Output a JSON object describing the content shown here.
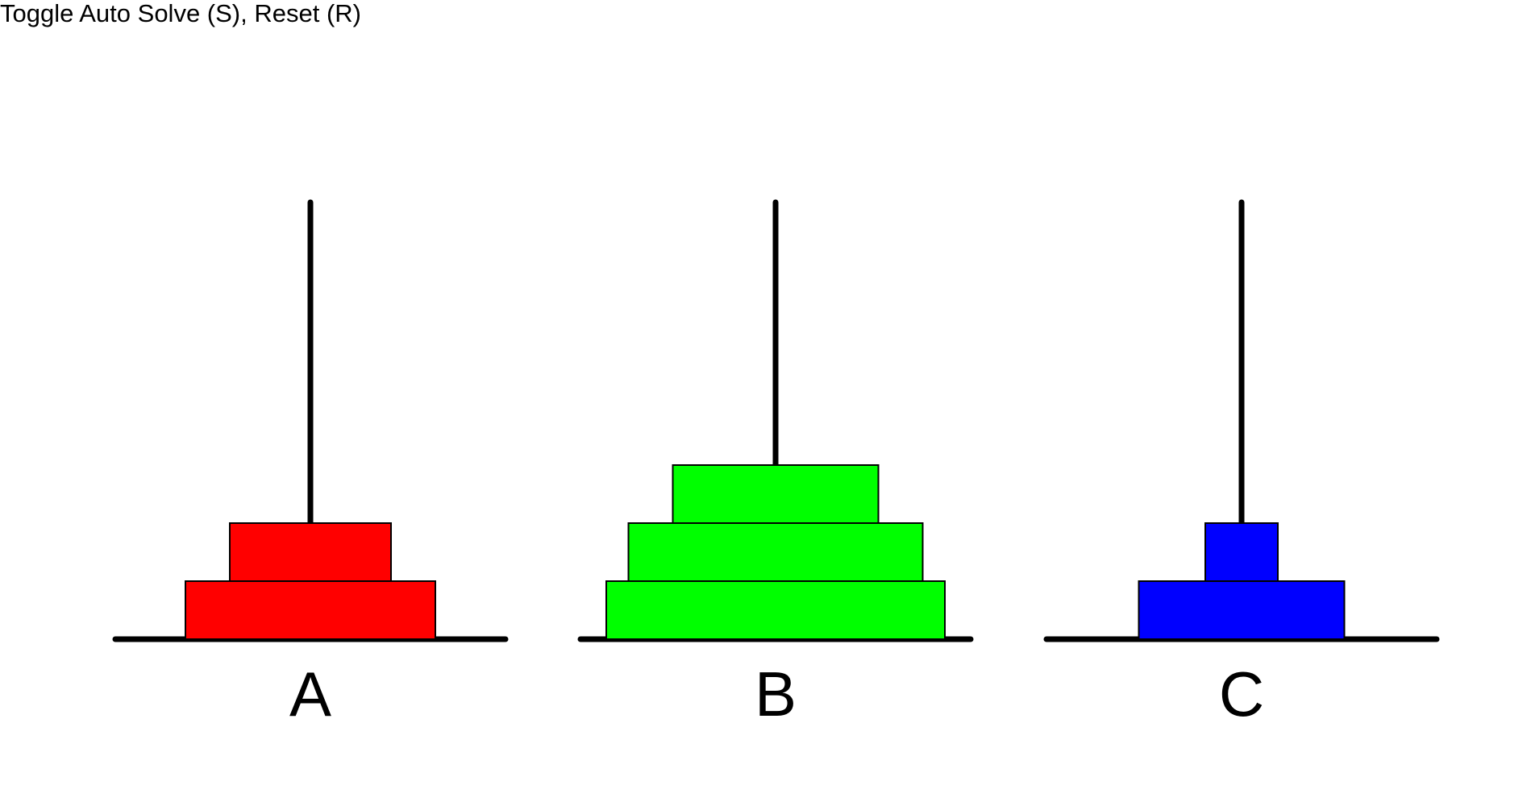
{
  "instructions": "Toggle Auto Solve (S), Reset (R)",
  "colors": {
    "background": "#ffffff",
    "pole": "#000000",
    "outline": "#000000"
  },
  "pegs": [
    {
      "label": "A",
      "disks": [
        {
          "size": 5,
          "color": "#ff0000"
        },
        {
          "size": 3,
          "color": "#ff0000"
        }
      ]
    },
    {
      "label": "B",
      "disks": [
        {
          "size": 7,
          "color": "#00ff00"
        },
        {
          "size": 6,
          "color": "#00ff00"
        },
        {
          "size": 4,
          "color": "#00ff00"
        }
      ]
    },
    {
      "label": "C",
      "disks": [
        {
          "size": 4,
          "color": "#0000ff"
        },
        {
          "size": 1,
          "color": "#0000ff"
        }
      ]
    }
  ]
}
